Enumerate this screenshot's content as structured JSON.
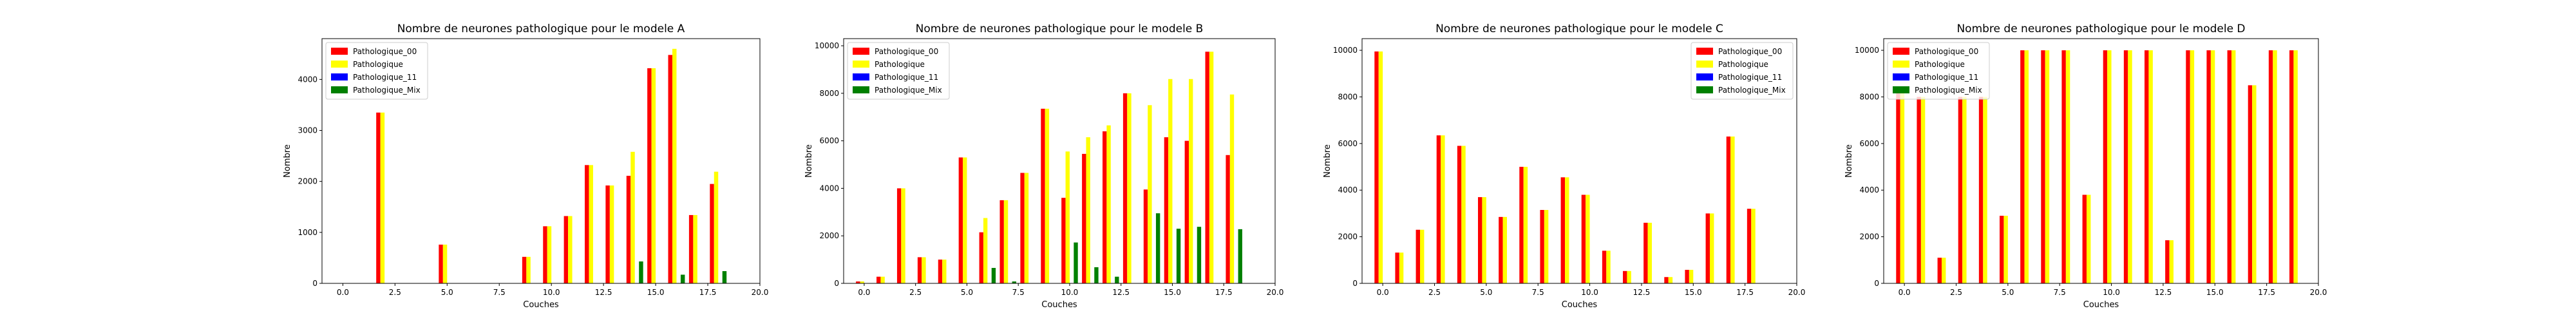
{
  "chart_data": [
    {
      "type": "bar",
      "title": "Nombre de neurones pathologique pour le modele A",
      "xlabel": "Couches",
      "ylabel": "Nombre",
      "xlim": [
        -1,
        20
      ],
      "ylim": [
        0,
        4800
      ],
      "xticks": [
        "0.0",
        "2.5",
        "5.0",
        "7.5",
        "10.0",
        "12.5",
        "15.0",
        "17.5",
        "20.0"
      ],
      "xtick_values": [
        0,
        2.5,
        5,
        7.5,
        10,
        12.5,
        15,
        17.5,
        20
      ],
      "yticks": [
        "0",
        "1000",
        "2000",
        "3000",
        "4000"
      ],
      "ytick_values": [
        0,
        1000,
        2000,
        3000,
        4000
      ],
      "legend_position": "top-left",
      "x": [
        0,
        1,
        2,
        3,
        4,
        5,
        6,
        7,
        8,
        9,
        10,
        11,
        12,
        13,
        14,
        15,
        16,
        17,
        18
      ],
      "series": [
        {
          "name": "Pathologique_00",
          "color": "#ff0000",
          "values": [
            0,
            0,
            3350,
            0,
            0,
            760,
            0,
            0,
            0,
            520,
            1120,
            1320,
            2320,
            1920,
            2110,
            4220,
            4480,
            1340,
            1950
          ]
        },
        {
          "name": "Pathologique",
          "color": "#ffff00",
          "values": [
            0,
            0,
            3350,
            0,
            0,
            760,
            0,
            0,
            0,
            520,
            1120,
            1320,
            2320,
            1920,
            2580,
            4220,
            4600,
            1340,
            2190
          ]
        },
        {
          "name": "Pathologique_11",
          "color": "#0000ff",
          "values": [
            0,
            0,
            0,
            0,
            0,
            0,
            0,
            0,
            0,
            0,
            0,
            0,
            0,
            0,
            0,
            0,
            0,
            0,
            0
          ]
        },
        {
          "name": "Pathologique_Mix",
          "color": "#008000",
          "values": [
            0,
            0,
            0,
            0,
            0,
            0,
            0,
            0,
            0,
            0,
            0,
            0,
            0,
            0,
            430,
            0,
            170,
            0,
            240
          ]
        }
      ]
    },
    {
      "type": "bar",
      "title": "Nombre de neurones pathologique pour le modele B",
      "xlabel": "Couches",
      "ylabel": "Nombre",
      "xlim": [
        -1,
        20
      ],
      "ylim": [
        0,
        10300
      ],
      "xticks": [
        "0.0",
        "2.5",
        "5.0",
        "7.5",
        "10.0",
        "12.5",
        "15.0",
        "17.5",
        "20.0"
      ],
      "xtick_values": [
        0,
        2.5,
        5,
        7.5,
        10,
        12.5,
        15,
        17.5,
        20
      ],
      "yticks": [
        "0",
        "2000",
        "4000",
        "6000",
        "8000",
        "10000"
      ],
      "ytick_values": [
        0,
        2000,
        4000,
        6000,
        8000,
        10000
      ],
      "legend_position": "top-left",
      "x": [
        0,
        1,
        2,
        3,
        4,
        5,
        6,
        7,
        8,
        9,
        10,
        11,
        12,
        13,
        14,
        15,
        16,
        17,
        18
      ],
      "series": [
        {
          "name": "Pathologique_00",
          "color": "#ff0000",
          "values": [
            80,
            280,
            4000,
            1100,
            1000,
            5300,
            2150,
            3500,
            4650,
            7350,
            3600,
            5450,
            6400,
            8000,
            3950,
            6150,
            6000,
            9750,
            5400
          ]
        },
        {
          "name": "Pathologique",
          "color": "#ffff00",
          "values": [
            80,
            280,
            4000,
            1100,
            1000,
            5300,
            2750,
            3500,
            4650,
            7350,
            5550,
            6150,
            6650,
            8000,
            7500,
            8600,
            8600,
            9750,
            7950
          ]
        },
        {
          "name": "Pathologique_11",
          "color": "#0000ff",
          "values": [
            0,
            0,
            0,
            0,
            0,
            0,
            0,
            0,
            0,
            0,
            0,
            0,
            0,
            0,
            0,
            0,
            0,
            0,
            0
          ]
        },
        {
          "name": "Pathologique_Mix",
          "color": "#008000",
          "values": [
            0,
            0,
            0,
            0,
            0,
            0,
            650,
            80,
            0,
            0,
            1720,
            680,
            280,
            0,
            2950,
            2300,
            2380,
            0,
            2280
          ]
        }
      ]
    },
    {
      "type": "bar",
      "title": "Nombre de neurones pathologique pour le modele C",
      "xlabel": "Couches",
      "ylabel": "Nombre",
      "xlim": [
        -1,
        20
      ],
      "ylim": [
        0,
        10500
      ],
      "xticks": [
        "0.0",
        "2.5",
        "5.0",
        "7.5",
        "10.0",
        "12.5",
        "15.0",
        "17.5",
        "20.0"
      ],
      "xtick_values": [
        0,
        2.5,
        5,
        7.5,
        10,
        12.5,
        15,
        17.5,
        20
      ],
      "yticks": [
        "0",
        "2000",
        "4000",
        "6000",
        "8000",
        "10000"
      ],
      "ytick_values": [
        0,
        2000,
        4000,
        6000,
        8000,
        10000
      ],
      "legend_position": "top-right",
      "x": [
        0,
        1,
        2,
        3,
        4,
        5,
        6,
        7,
        8,
        9,
        10,
        11,
        12,
        13,
        14,
        15,
        16,
        17,
        18
      ],
      "series": [
        {
          "name": "Pathologique_00",
          "color": "#ff0000",
          "values": [
            9950,
            1320,
            2300,
            6350,
            5900,
            3700,
            2850,
            5000,
            3150,
            4550,
            3800,
            1400,
            530,
            2600,
            270,
            580,
            3000,
            6300,
            3200
          ]
        },
        {
          "name": "Pathologique",
          "color": "#ffff00",
          "values": [
            9950,
            1320,
            2300,
            6350,
            5900,
            3700,
            2850,
            5000,
            3150,
            4550,
            3800,
            1400,
            530,
            2600,
            270,
            580,
            3000,
            6300,
            3200
          ]
        },
        {
          "name": "Pathologique_11",
          "color": "#0000ff",
          "values": [
            0,
            0,
            0,
            0,
            0,
            0,
            0,
            0,
            0,
            0,
            0,
            0,
            0,
            0,
            0,
            0,
            0,
            0,
            0
          ]
        },
        {
          "name": "Pathologique_Mix",
          "color": "#008000",
          "values": [
            0,
            0,
            0,
            0,
            0,
            0,
            0,
            0,
            0,
            0,
            0,
            0,
            0,
            0,
            0,
            0,
            0,
            0,
            0
          ]
        }
      ]
    },
    {
      "type": "bar",
      "title": "Nombre de neurones pathologique pour le modele D",
      "xlabel": "Couches",
      "ylabel": "Nombre",
      "xlim": [
        -1,
        20
      ],
      "ylim": [
        0,
        10500
      ],
      "xticks": [
        "0.0",
        "2.5",
        "5.0",
        "7.5",
        "10.0",
        "12.5",
        "15.0",
        "17.5",
        "20.0"
      ],
      "xtick_values": [
        0,
        2.5,
        5,
        7.5,
        10,
        12.5,
        15,
        17.5,
        20
      ],
      "yticks": [
        "0",
        "2000",
        "4000",
        "6000",
        "8000",
        "10000"
      ],
      "ytick_values": [
        0,
        2000,
        4000,
        6000,
        8000,
        10000
      ],
      "legend_position": "top-left",
      "x": [
        0,
        1,
        2,
        3,
        4,
        5,
        6,
        7,
        8,
        9,
        10,
        11,
        12,
        13,
        14,
        15,
        16,
        17,
        18,
        19
      ],
      "series": [
        {
          "name": "Pathologique_00",
          "color": "#ff0000",
          "values": [
            8200,
            8000,
            1100,
            8000,
            8000,
            2900,
            10000,
            10000,
            10000,
            3800,
            10000,
            10000,
            10000,
            1850,
            10000,
            10000,
            10000,
            8500,
            10000,
            10000
          ]
        },
        {
          "name": "Pathologique",
          "color": "#ffff00",
          "values": [
            8200,
            8000,
            1100,
            8000,
            8000,
            2900,
            10000,
            10000,
            10000,
            3800,
            10000,
            10000,
            10000,
            1850,
            10000,
            10000,
            10000,
            8500,
            10000,
            10000
          ]
        },
        {
          "name": "Pathologique_11",
          "color": "#0000ff",
          "values": [
            0,
            0,
            0,
            0,
            0,
            0,
            0,
            0,
            0,
            0,
            0,
            0,
            0,
            0,
            0,
            0,
            0,
            0,
            0,
            0
          ]
        },
        {
          "name": "Pathologique_Mix",
          "color": "#008000",
          "values": [
            0,
            0,
            0,
            0,
            0,
            0,
            0,
            0,
            0,
            0,
            0,
            0,
            0,
            0,
            0,
            0,
            0,
            0,
            0,
            0
          ]
        }
      ]
    }
  ]
}
